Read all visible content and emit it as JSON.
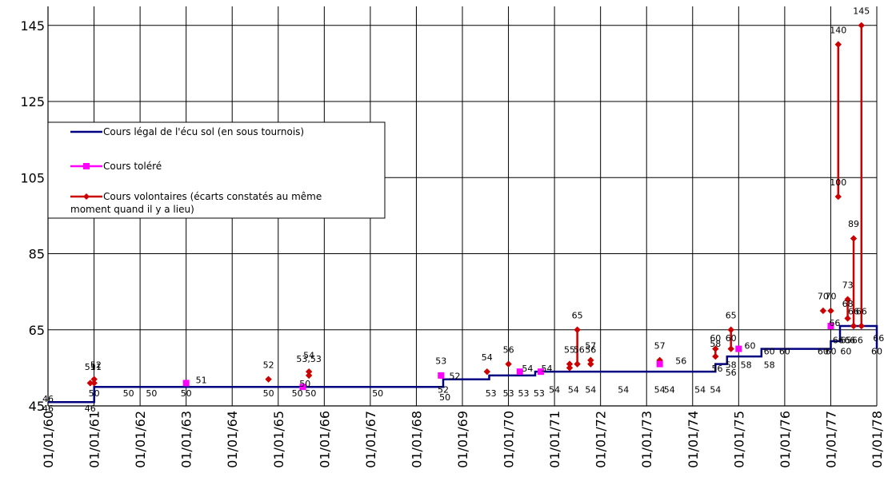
{
  "chart_data": {
    "type": "line",
    "title": "",
    "xlabel": "",
    "ylabel": "",
    "grid": true,
    "legend_placement": "left",
    "ylim": [
      45,
      150
    ],
    "yticks": [
      45,
      65,
      85,
      105,
      125,
      145
    ],
    "xlim": [
      "1560-01-01",
      "1578-01-01"
    ],
    "xticks": [
      "01/01/60",
      "01/01/61",
      "01/01/62",
      "01/01/63",
      "01/01/64",
      "01/01/65",
      "01/01/66",
      "01/01/67",
      "01/01/68",
      "01/01/69",
      "01/01/70",
      "01/01/71",
      "01/01/72",
      "01/01/73",
      "01/01/74",
      "01/01/75",
      "01/01/76",
      "01/01/77",
      "01/01/78"
    ],
    "colors": {
      "legal": "#000080",
      "tolere": "#FF00FF",
      "volontaire": "#CC0000",
      "grid": "#000000"
    },
    "series": [
      {
        "name": "Cours légal de l'écu sol (en sous tournois)",
        "kind": "step",
        "points": [
          {
            "x": "1560-01-01",
            "y": 46
          },
          {
            "x": "1561-01-01",
            "y": 46
          },
          {
            "x": "1561-01-01",
            "y": 50
          },
          {
            "x": "1568-08-01",
            "y": 50
          },
          {
            "x": "1568-08-01",
            "y": 52
          },
          {
            "x": "1569-08-01",
            "y": 52
          },
          {
            "x": "1569-08-01",
            "y": 53
          },
          {
            "x": "1570-08-01",
            "y": 53
          },
          {
            "x": "1570-08-01",
            "y": 54
          },
          {
            "x": "1574-07-01",
            "y": 54
          },
          {
            "x": "1574-07-01",
            "y": 56
          },
          {
            "x": "1574-10-01",
            "y": 56
          },
          {
            "x": "1574-10-01",
            "y": 58
          },
          {
            "x": "1575-07-01",
            "y": 58
          },
          {
            "x": "1575-07-01",
            "y": 60
          },
          {
            "x": "1577-01-01",
            "y": 60
          },
          {
            "x": "1577-01-01",
            "y": 62
          },
          {
            "x": "1577-03-15",
            "y": 62
          },
          {
            "x": "1577-03-15",
            "y": 66
          },
          {
            "x": "1578-01-01",
            "y": 66
          },
          {
            "x": "1578-01-01",
            "y": 60
          }
        ]
      },
      {
        "name": "Cours toléré",
        "kind": "markers",
        "points": [
          {
            "x": "1563-01-01",
            "y": 51
          },
          {
            "x": "1565-07-15",
            "y": 50
          },
          {
            "x": "1568-07-15",
            "y": 53
          },
          {
            "x": "1570-04-01",
            "y": 54
          },
          {
            "x": "1570-09-15",
            "y": 54
          },
          {
            "x": "1573-04-15",
            "y": 56
          },
          {
            "x": "1575-01-01",
            "y": 60
          },
          {
            "x": "1577-01-01",
            "y": 66
          }
        ]
      },
      {
        "name": "Cours volontaires (écarts constatés au même moment quand il y a lieu)",
        "kind": "markers-lines",
        "points": [
          {
            "x": "1560-12-01",
            "y": 51
          },
          {
            "x": "1561-01-01",
            "y": 51
          },
          {
            "x": "1561-01-01",
            "y": 52
          },
          {
            "x": "1564-10-15",
            "y": 52
          },
          {
            "x": "1565-09-01",
            "y": 53
          },
          {
            "x": "1565-09-01",
            "y": 54
          },
          {
            "x": "1568-07-15",
            "y": 53
          },
          {
            "x": "1569-07-15",
            "y": 54
          },
          {
            "x": "1570-01-01",
            "y": 56
          },
          {
            "x": "1571-05-01",
            "y": 55
          },
          {
            "x": "1571-05-01",
            "y": 56
          },
          {
            "x": "1571-07-01",
            "y": 56
          },
          {
            "x": "1571-07-01",
            "y": 65
          },
          {
            "x": "1571-10-15",
            "y": 56
          },
          {
            "x": "1571-10-15",
            "y": 57
          },
          {
            "x": "1573-04-15",
            "y": 57
          },
          {
            "x": "1574-07-01",
            "y": 58
          },
          {
            "x": "1574-07-01",
            "y": 60
          },
          {
            "x": "1574-11-01",
            "y": 60
          },
          {
            "x": "1574-11-01",
            "y": 65
          },
          {
            "x": "1576-11-01",
            "y": 70
          },
          {
            "x": "1577-01-01",
            "y": 70
          },
          {
            "x": "1577-03-01",
            "y": 140
          },
          {
            "x": "1577-03-01",
            "y": 100
          },
          {
            "x": "1577-05-15",
            "y": 68
          },
          {
            "x": "1577-05-15",
            "y": 73
          },
          {
            "x": "1577-07-01",
            "y": 66
          },
          {
            "x": "1577-07-01",
            "y": 89
          },
          {
            "x": "1577-09-01",
            "y": 66
          },
          {
            "x": "1577-09-01",
            "y": 145
          }
        ],
        "segments": [
          {
            "x": "1571-07-01",
            "y1": 56,
            "y2": 65
          },
          {
            "x": "1574-07-01",
            "y1": 58,
            "y2": 60
          },
          {
            "x": "1574-11-01",
            "y1": 60,
            "y2": 65
          },
          {
            "x": "1577-03-01",
            "y1": 100,
            "y2": 140
          },
          {
            "x": "1577-05-15",
            "y1": 68,
            "y2": 73
          },
          {
            "x": "1577-07-01",
            "y1": 66,
            "y2": 89
          },
          {
            "x": "1577-09-01",
            "y1": 66,
            "y2": 145
          }
        ]
      }
    ],
    "data_labels": [
      {
        "text": "46",
        "x": "1560-01-01",
        "y": 46
      },
      {
        "text": "46",
        "x": "1560-01-01",
        "y": 43.5
      },
      {
        "text": "46",
        "x": "1560-12-01",
        "y": 43.5
      },
      {
        "text": "50",
        "x": "1561-01-01",
        "y": 47.5
      },
      {
        "text": "50",
        "x": "1561-10-01",
        "y": 47.5
      },
      {
        "text": "50",
        "x": "1562-04-01",
        "y": 47.5
      },
      {
        "text": "50",
        "x": "1563-01-01",
        "y": 47.5
      },
      {
        "text": "51",
        "x": "1563-05-01",
        "y": 51
      },
      {
        "text": "50",
        "x": "1564-10-15",
        "y": 47.5
      },
      {
        "text": "50",
        "x": "1565-06-01",
        "y": 47.5
      },
      {
        "text": "50",
        "x": "1565-09-15",
        "y": 47.5
      },
      {
        "text": "50",
        "x": "1565-08-01",
        "y": 50
      },
      {
        "text": "50",
        "x": "1567-03-01",
        "y": 47.5
      },
      {
        "text": "52",
        "x": "1564-10-15",
        "y": 55
      },
      {
        "text": "53,53",
        "x": "1565-09-01",
        "y": 56.5
      },
      {
        "text": "54",
        "x": "1565-09-01",
        "y": 57.5
      },
      {
        "text": "51",
        "x": "1560-12-01",
        "y": 54.5
      },
      {
        "text": "52",
        "x": "1561-01-15",
        "y": 55
      },
      {
        "text": "51",
        "x": "1561-01-15",
        "y": 54.5
      },
      {
        "text": "53",
        "x": "1568-07-15",
        "y": 56
      },
      {
        "text": "52",
        "x": "1568-11-01",
        "y": 52
      },
      {
        "text": "52",
        "x": "1568-08-01",
        "y": 48.5
      },
      {
        "text": "50",
        "x": "1568-08-15",
        "y": 46.5
      },
      {
        "text": "54",
        "x": "1569-07-15",
        "y": 57
      },
      {
        "text": "53",
        "x": "1569-08-15",
        "y": 47.5
      },
      {
        "text": "53",
        "x": "1570-01-01",
        "y": 47.5
      },
      {
        "text": "53",
        "x": "1570-05-01",
        "y": 47.5
      },
      {
        "text": "56",
        "x": "1570-01-01",
        "y": 59
      },
      {
        "text": "54",
        "x": "1570-06-01",
        "y": 54
      },
      {
        "text": "53",
        "x": "1570-09-01",
        "y": 47.5
      },
      {
        "text": "54",
        "x": "1570-11-01",
        "y": 54
      },
      {
        "text": "54",
        "x": "1571-01-01",
        "y": 48.5
      },
      {
        "text": "65",
        "x": "1571-07-01",
        "y": 68
      },
      {
        "text": "55",
        "x": "1571-05-01",
        "y": 59
      },
      {
        "text": "56",
        "x": "1571-07-15",
        "y": 59
      },
      {
        "text": "56",
        "x": "1571-10-15",
        "y": 59
      },
      {
        "text": "57",
        "x": "1571-10-15",
        "y": 60
      },
      {
        "text": "54",
        "x": "1571-06-01",
        "y": 48.5
      },
      {
        "text": "54",
        "x": "1571-10-15",
        "y": 48.5
      },
      {
        "text": "54",
        "x": "1572-07-01",
        "y": 48.5
      },
      {
        "text": "57",
        "x": "1573-04-15",
        "y": 60
      },
      {
        "text": "56",
        "x": "1573-10-01",
        "y": 56
      },
      {
        "text": "54",
        "x": "1573-04-15",
        "y": 48.5
      },
      {
        "text": "54",
        "x": "1573-07-01",
        "y": 48.5
      },
      {
        "text": "54",
        "x": "1574-03-01",
        "y": 48.5
      },
      {
        "text": "54",
        "x": "1574-07-01",
        "y": 48.5
      },
      {
        "text": "60",
        "x": "1574-07-01",
        "y": 62
      },
      {
        "text": "58",
        "x": "1574-07-01",
        "y": 60.5
      },
      {
        "text": "65",
        "x": "1574-11-01",
        "y": 68
      },
      {
        "text": "60",
        "x": "1574-11-01",
        "y": 62
      },
      {
        "text": "56",
        "x": "1574-07-15",
        "y": 54
      },
      {
        "text": "56",
        "x": "1574-11-01",
        "y": 53
      },
      {
        "text": "58",
        "x": "1574-11-01",
        "y": 55
      },
      {
        "text": "58",
        "x": "1575-03-01",
        "y": 55
      },
      {
        "text": "60",
        "x": "1575-04-01",
        "y": 60
      },
      {
        "text": "58",
        "x": "1575-09-01",
        "y": 55
      },
      {
        "text": "60",
        "x": "1575-09-01",
        "y": 58.5
      },
      {
        "text": "60",
        "x": "1576-01-01",
        "y": 58.5
      },
      {
        "text": "60",
        "x": "1576-11-01",
        "y": 58.5
      },
      {
        "text": "60",
        "x": "1577-01-01",
        "y": 58.5
      },
      {
        "text": "60",
        "x": "1577-05-01",
        "y": 58.5
      },
      {
        "text": "70",
        "x": "1576-11-01",
        "y": 73
      },
      {
        "text": "70",
        "x": "1577-01-01",
        "y": 73
      },
      {
        "text": "66",
        "x": "1577-02-01",
        "y": 66
      },
      {
        "text": "140",
        "x": "1577-03-01",
        "y": 143
      },
      {
        "text": "100",
        "x": "1577-03-01",
        "y": 103
      },
      {
        "text": "89",
        "x": "1577-07-01",
        "y": 92
      },
      {
        "text": "73",
        "x": "1577-05-15",
        "y": 76
      },
      {
        "text": "68",
        "x": "1577-05-15",
        "y": 71
      },
      {
        "text": "66",
        "x": "1577-07-01",
        "y": 69
      },
      {
        "text": "66",
        "x": "1577-09-01",
        "y": 69
      },
      {
        "text": "66",
        "x": "1577-03-01",
        "y": 61.5
      },
      {
        "text": "65",
        "x": "1577-05-01",
        "y": 61.5
      },
      {
        "text": "66",
        "x": "1577-06-01",
        "y": 61.5
      },
      {
        "text": "66",
        "x": "1577-08-01",
        "y": 61.5
      },
      {
        "text": "66",
        "x": "1578-01-15",
        "y": 62
      },
      {
        "text": "145",
        "x": "1577-09-01",
        "y": 148
      },
      {
        "text": "60",
        "x": "1578-01-01",
        "y": 58.5
      }
    ]
  }
}
